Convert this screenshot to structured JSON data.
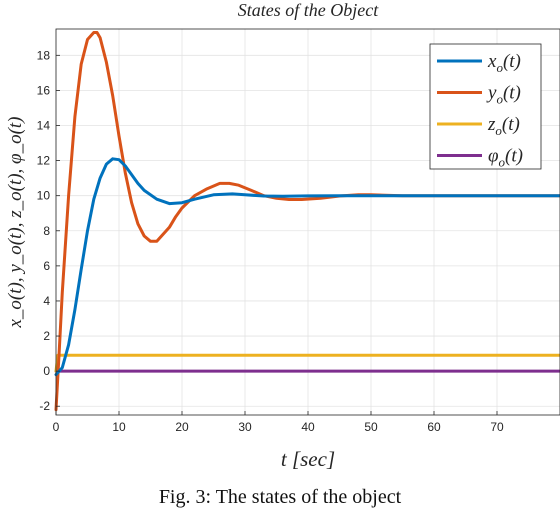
{
  "caption": "Fig. 3: The states of the object",
  "chart_data": {
    "type": "line",
    "title": "States of the Object",
    "xlabel": "t [sec]",
    "ylabel": "x_o(t), y_o(t), z_o(t), φ_o(t)",
    "xlim": [
      0,
      80
    ],
    "ylim": [
      -2.5,
      19.5
    ],
    "xticks": [
      0,
      10,
      20,
      30,
      40,
      50,
      60,
      70
    ],
    "yticks": [
      -2,
      0,
      2,
      4,
      6,
      8,
      10,
      12,
      14,
      16,
      18
    ],
    "grid": true,
    "legend_position": "top-right",
    "series": [
      {
        "name": "x_o(t)",
        "label_base": "x",
        "label_rest": "(t)",
        "color": "#0072BD",
        "x": [
          0,
          1,
          2,
          3,
          4,
          5,
          6,
          7,
          8,
          9,
          10,
          11,
          12,
          13,
          14,
          16,
          18,
          20,
          22,
          25,
          28,
          30,
          33,
          36,
          40,
          45,
          50,
          60,
          70,
          80
        ],
        "y": [
          -0.2,
          0.2,
          1.5,
          3.5,
          5.8,
          8.0,
          9.8,
          11.0,
          11.8,
          12.1,
          12.05,
          11.7,
          11.2,
          10.7,
          10.3,
          9.8,
          9.55,
          9.6,
          9.8,
          10.05,
          10.1,
          10.05,
          9.98,
          9.97,
          9.99,
          10.0,
          10.0,
          10.0,
          10.0,
          10.0
        ]
      },
      {
        "name": "y_o(t)",
        "label_base": "y",
        "label_rest": "(t)",
        "color": "#D95319",
        "x": [
          0,
          0.5,
          1,
          2,
          3,
          4,
          5,
          6,
          6.5,
          7,
          8,
          9,
          10,
          11,
          12,
          13,
          14,
          15,
          16,
          17,
          18,
          19,
          20,
          22,
          24,
          26,
          27.5,
          29,
          31,
          33,
          35,
          37,
          39,
          42,
          45,
          48,
          50,
          55,
          60,
          70,
          80
        ],
        "y": [
          -2.2,
          1.0,
          4.5,
          10.0,
          14.5,
          17.5,
          18.9,
          19.3,
          19.3,
          19.0,
          17.6,
          15.7,
          13.4,
          11.3,
          9.6,
          8.4,
          7.7,
          7.4,
          7.4,
          7.8,
          8.2,
          8.8,
          9.3,
          10.0,
          10.4,
          10.7,
          10.7,
          10.6,
          10.3,
          10.0,
          9.85,
          9.78,
          9.78,
          9.85,
          9.98,
          10.05,
          10.05,
          10.0,
          10.0,
          10.0,
          10.0
        ]
      },
      {
        "name": "z_o(t)",
        "label_base": "z",
        "label_rest": "(t)",
        "color": "#EDB120",
        "x": [
          0,
          0.3,
          1,
          80
        ],
        "y": [
          0.0,
          0.9,
          0.9,
          0.9
        ]
      },
      {
        "name": "φ_o(t)",
        "label_base": "φ",
        "label_rest": "(t)",
        "color": "#7E2F8E",
        "x": [
          0,
          80
        ],
        "y": [
          0.0,
          0.0
        ]
      }
    ]
  }
}
